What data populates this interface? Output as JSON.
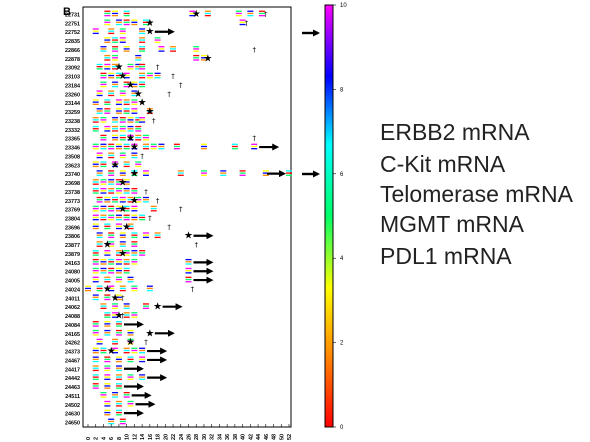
{
  "panel_label": "B",
  "marker_legend": [
    "ERBB2 mRNA",
    "C-Kit mRNA",
    "Telomerase mRNA",
    "MGMT mRNA",
    "PDL1 mRNA"
  ],
  "chart_data": {
    "type": "timeline",
    "title": "",
    "xlabel": "",
    "ylabel": "",
    "xlim": [
      0,
      52
    ],
    "x_ticks": [
      0,
      2,
      4,
      6,
      8,
      10,
      12,
      14,
      16,
      18,
      20,
      22,
      24,
      26,
      28,
      30,
      32,
      34,
      36,
      38,
      40,
      42,
      44,
      46,
      48,
      50,
      52
    ],
    "grid": false,
    "colorbar": {
      "min": 0,
      "max": 10,
      "ticks": [
        0,
        2,
        4,
        6,
        8,
        10
      ],
      "colormap": [
        "#ff0000",
        "#ff8800",
        "#ffff00",
        "#00ff66",
        "#00ffff",
        "#0000ff",
        "#ff00ff"
      ]
    },
    "patients": [
      {
        "id": "22731",
        "samples": [
          5,
          7,
          10,
          27,
          31,
          39,
          42,
          45
        ],
        "star": 28,
        "cross": 46
      },
      {
        "id": "22751",
        "samples": [
          5,
          8,
          10,
          12,
          15,
          40
        ],
        "star": 16,
        "cross": 41
      },
      {
        "id": "22752",
        "samples": [
          2,
          6,
          9,
          14
        ],
        "star": 16,
        "cross": null
      },
      {
        "id": "22835",
        "samples": [
          5,
          7,
          9,
          14,
          18
        ],
        "star": null,
        "cross": null
      },
      {
        "id": "22866",
        "samples": [
          4,
          7,
          10,
          14,
          19,
          22,
          28
        ],
        "star": null,
        "cross": 43
      },
      {
        "id": "22878",
        "samples": [
          5,
          7,
          13,
          28,
          30
        ],
        "star": 31,
        "cross": null
      },
      {
        "id": "23092",
        "samples": [
          3,
          5,
          7,
          11,
          13,
          14
        ],
        "star": 8,
        "cross": 18
      },
      {
        "id": "23103",
        "samples": [
          4,
          6,
          8,
          10,
          14,
          16,
          18
        ],
        "star": 9,
        "cross": 22
      },
      {
        "id": "23184",
        "samples": [
          4,
          7,
          10,
          12,
          14
        ],
        "star": 11,
        "cross": 24
      },
      {
        "id": "23260",
        "samples": [
          3,
          6,
          9,
          12
        ],
        "star": 13,
        "cross": 21
      },
      {
        "id": "23144",
        "samples": [
          2,
          5,
          8,
          10,
          12
        ],
        "star": 14,
        "cross": null
      },
      {
        "id": "23259",
        "samples": [
          3,
          5,
          8,
          10,
          12,
          16
        ],
        "star": 16,
        "cross": null
      },
      {
        "id": "23238",
        "samples": [
          2,
          4,
          7,
          9,
          11,
          13,
          14
        ],
        "star": null,
        "cross": 17
      },
      {
        "id": "23332",
        "samples": [
          2,
          5,
          7,
          9,
          11,
          13
        ],
        "star": null,
        "cross": null
      },
      {
        "id": "23365",
        "samples": [
          4,
          7,
          9,
          11,
          13,
          15
        ],
        "star": 11,
        "cross": 43
      },
      {
        "id": "23346",
        "samples": [
          2,
          4,
          6,
          8,
          10,
          12,
          15,
          17,
          19,
          23,
          30,
          38,
          43
        ],
        "star": 12,
        "cross": null
      },
      {
        "id": "23508",
        "samples": [
          3,
          6,
          9,
          12
        ],
        "star": null,
        "cross": 14
      },
      {
        "id": "23623",
        "samples": [
          2,
          4,
          7,
          10,
          13
        ],
        "star": 7,
        "cross": null
      },
      {
        "id": "23740",
        "samples": [
          3,
          6,
          9,
          12,
          15,
          24,
          30,
          35,
          40,
          46,
          52
        ],
        "star": 12,
        "cross": null
      },
      {
        "id": "23698",
        "samples": [
          2,
          4,
          6,
          8,
          10
        ],
        "star": 9,
        "cross": null
      },
      {
        "id": "23738",
        "samples": [
          2,
          4,
          6,
          8,
          10,
          12
        ],
        "star": null,
        "cross": 15
      },
      {
        "id": "23773",
        "samples": [
          3,
          5,
          7,
          9,
          11,
          13,
          15
        ],
        "star": 12,
        "cross": 18
      },
      {
        "id": "23769",
        "samples": [
          2,
          4,
          6,
          8,
          10,
          12,
          17
        ],
        "star": 9,
        "cross": 24
      },
      {
        "id": "23804",
        "samples": [
          2,
          4,
          6,
          8,
          10,
          12,
          14
        ],
        "star": null,
        "cross": 16
      },
      {
        "id": "23696",
        "samples": [
          2,
          5,
          8,
          11
        ],
        "star": 10,
        "cross": 21
      },
      {
        "id": "23806",
        "samples": [
          3,
          6,
          9,
          12,
          15,
          18
        ],
        "star": 26,
        "cross": null
      },
      {
        "id": "23877",
        "samples": [
          3,
          6,
          9,
          12
        ],
        "star": 5,
        "cross": 28
      },
      {
        "id": "23879",
        "samples": [
          2,
          5,
          8,
          10,
          12,
          14
        ],
        "star": 9,
        "cross": null
      },
      {
        "id": "24163",
        "samples": [
          2,
          4,
          6,
          8,
          10,
          12,
          26
        ],
        "star": null,
        "cross": null
      },
      {
        "id": "24080",
        "samples": [
          2,
          4,
          6,
          8,
          10,
          26
        ],
        "star": null,
        "cross": null
      },
      {
        "id": "24005",
        "samples": [
          2,
          5,
          8,
          11,
          26
        ],
        "star": null,
        "cross": null
      },
      {
        "id": "24024",
        "samples": [
          0,
          3,
          6,
          9,
          12,
          16
        ],
        "star": 5,
        "cross": 27
      },
      {
        "id": "24011",
        "samples": [
          2,
          5,
          8
        ],
        "star": 7,
        "cross": 9
      },
      {
        "id": "24062",
        "samples": [
          4,
          7,
          10,
          15
        ],
        "star": 18,
        "cross": null
      },
      {
        "id": "24088",
        "samples": [
          5,
          7,
          10,
          12
        ],
        "star": 8,
        "cross": 9
      },
      {
        "id": "24084",
        "samples": [
          2,
          5,
          8
        ],
        "star": null,
        "cross": null
      },
      {
        "id": "24165",
        "samples": [
          2,
          5,
          8,
          11
        ],
        "star": 16,
        "cross": null
      },
      {
        "id": "24262",
        "samples": [
          3,
          7,
          11
        ],
        "star": 11,
        "cross": 15
      },
      {
        "id": "24373",
        "samples": [
          2,
          4,
          7,
          10,
          12,
          14
        ],
        "star": 6,
        "cross": null
      },
      {
        "id": "24467",
        "samples": [
          2,
          5,
          8,
          11,
          14
        ],
        "star": null,
        "cross": null
      },
      {
        "id": "24417",
        "samples": [
          2,
          5,
          8
        ],
        "star": null,
        "cross": null
      },
      {
        "id": "24442",
        "samples": [
          2,
          5,
          8,
          11,
          14
        ],
        "star": null,
        "cross": null
      },
      {
        "id": "24463",
        "samples": [
          2,
          5,
          8
        ],
        "star": null,
        "cross": null
      },
      {
        "id": "24511",
        "samples": [
          4,
          7,
          10
        ],
        "star": null,
        "cross": null
      },
      {
        "id": "24502",
        "samples": [
          5,
          8,
          11
        ],
        "star": null,
        "cross": null
      },
      {
        "id": "24630",
        "samples": [
          5,
          8
        ],
        "star": null,
        "cross": null
      },
      {
        "id": "24650",
        "samples": [
          6,
          9
        ],
        "star": null,
        "cross": null
      }
    ],
    "arrow_rows": [
      "22752",
      "23346",
      "23740",
      "23806",
      "24163",
      "24080",
      "24005",
      "24062",
      "24084",
      "24165",
      "24373",
      "24467",
      "24417",
      "24442",
      "24463",
      "24511",
      "24502",
      "24630"
    ]
  }
}
